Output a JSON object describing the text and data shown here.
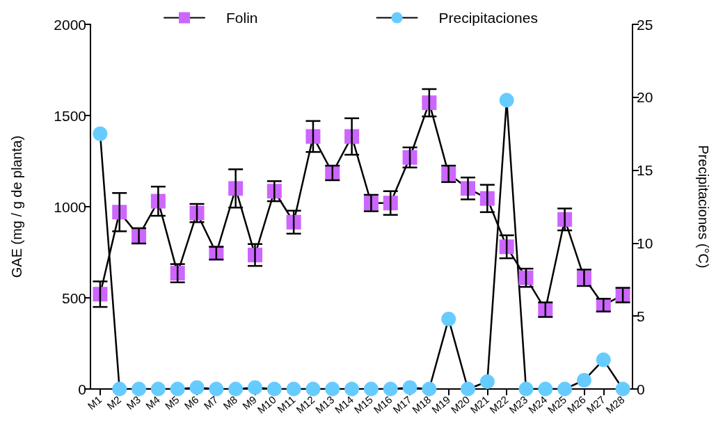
{
  "chart_data": {
    "type": "line",
    "categories": [
      "M1",
      "M2",
      "M3",
      "M4",
      "M5",
      "M6",
      "M7",
      "M8",
      "M9",
      "M10",
      "M11",
      "M12",
      "M13",
      "M14",
      "M15",
      "M16",
      "M17",
      "M18",
      "M19",
      "M20",
      "M21",
      "M22",
      "M23",
      "M24",
      "M25",
      "M26",
      "M27",
      "M28"
    ],
    "ylabel": "GAE (mg / g de planta)",
    "y2label": "Precipitaciones (°C)",
    "ylim": [
      0,
      2000
    ],
    "yticks": [
      0,
      500,
      1000,
      1500,
      2000
    ],
    "y2lim": [
      0,
      25
    ],
    "y2ticks": [
      0,
      5,
      10,
      15,
      20,
      25
    ],
    "legend": "top",
    "series": [
      {
        "name": "Folin",
        "color": "#cc66ff",
        "marker": "square",
        "values": [
          520,
          970,
          840,
          1030,
          635,
          965,
          745,
          1100,
          735,
          1085,
          915,
          1385,
          1185,
          1385,
          1020,
          1020,
          1270,
          1570,
          1180,
          1100,
          1045,
          780,
          610,
          435,
          930,
          610,
          460,
          515
        ],
        "errors": [
          70,
          105,
          42,
          80,
          50,
          50,
          35,
          105,
          60,
          55,
          63,
          85,
          40,
          100,
          45,
          65,
          55,
          75,
          45,
          60,
          75,
          63,
          50,
          40,
          60,
          45,
          35,
          40
        ]
      },
      {
        "name": "Precipitaciones",
        "color": "#66ccff",
        "marker": "circle",
        "axis": "y2",
        "values": [
          17.5,
          0,
          0,
          0,
          0,
          0.1,
          0,
          0,
          0.1,
          0,
          0,
          0,
          0,
          0,
          0,
          0,
          0.1,
          0,
          4.8,
          0,
          0.5,
          19.8,
          0,
          0,
          0,
          0.6,
          2,
          0
        ]
      }
    ]
  }
}
